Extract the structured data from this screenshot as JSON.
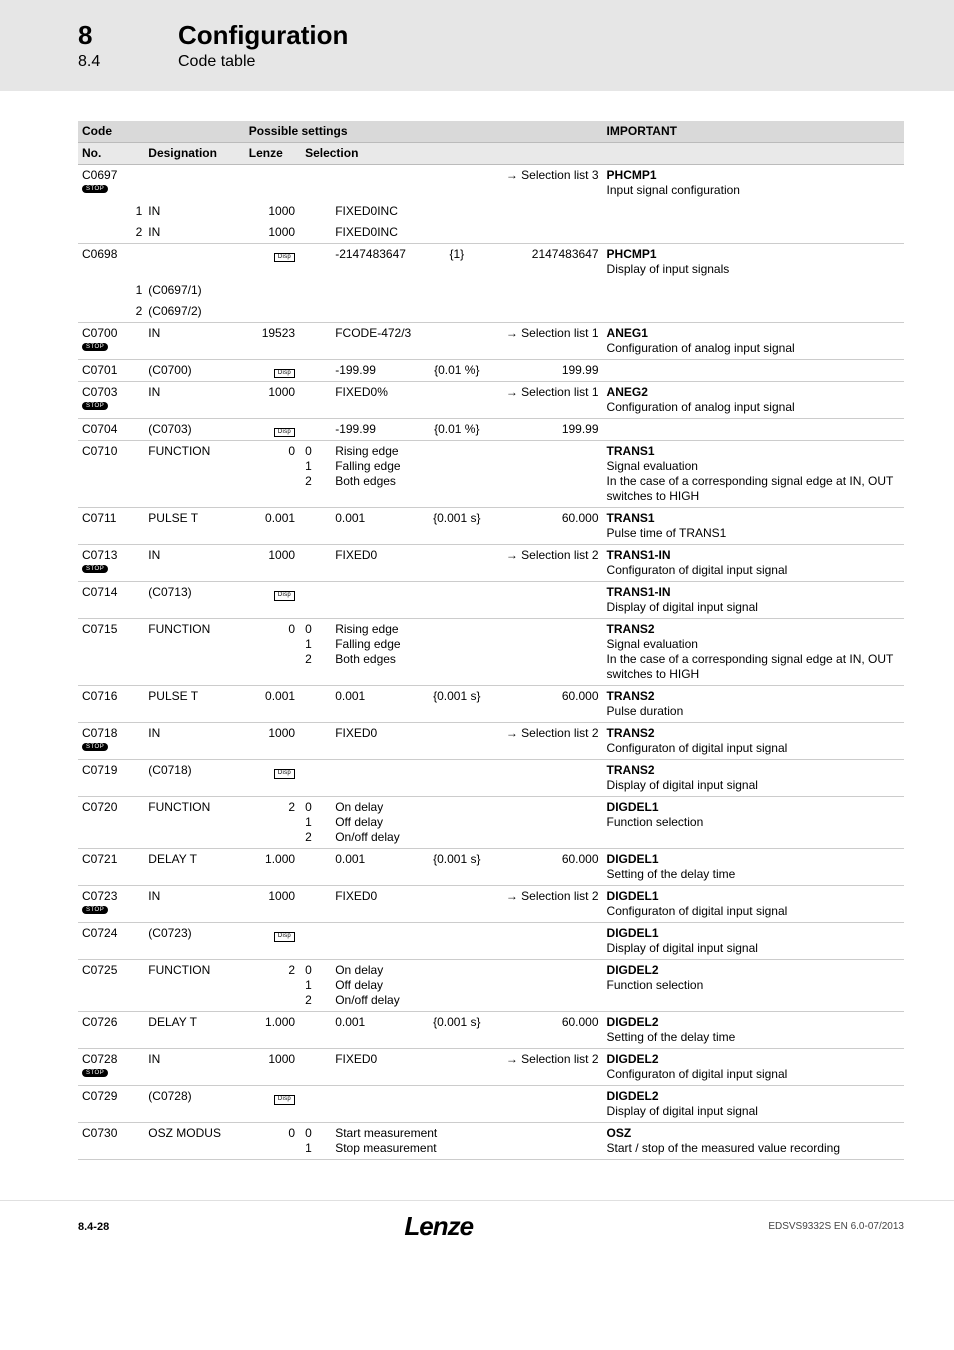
{
  "header": {
    "section_num": "8",
    "section_title": "Configuration",
    "subsection_num": "8.4",
    "subsection_title": "Code table"
  },
  "columns": {
    "code": "Code",
    "no": "No.",
    "designation": "Designation",
    "possible": "Possible settings",
    "lenze": "Lenze",
    "selection": "Selection",
    "important": "IMPORTANT"
  },
  "badges": {
    "stop": "STOP",
    "disp": "Disp"
  },
  "rows": [
    {
      "no": "C0697",
      "stop": true,
      "sub": "",
      "desig": "",
      "lenze": "",
      "sel1": "",
      "sel2": "",
      "sel3": "",
      "sel4": "→ Selection list 3",
      "imp_b": "PHCMP1",
      "imp": "Input signal configuration",
      "line": false
    },
    {
      "no": "",
      "sub": "1",
      "desig": "IN",
      "lenze": "1000",
      "sel1": "",
      "sel2": "FIXED0INC",
      "sel3": "",
      "sel4": "",
      "imp_b": "",
      "imp": "",
      "line": true,
      "noline": true
    },
    {
      "no": "",
      "sub": "2",
      "desig": "IN",
      "lenze": "1000",
      "sel1": "",
      "sel2": "FIXED0INC",
      "sel3": "",
      "sel4": "",
      "imp_b": "",
      "imp": "",
      "line": true
    },
    {
      "no": "C0698",
      "desig": "",
      "lenze_badge": true,
      "sel1": "",
      "sel2": "-2147483647",
      "sel3": "{1}",
      "sel4": "2147483647",
      "imp_b": "PHCMP1",
      "imp": "Display of input signals",
      "line": false
    },
    {
      "no": "",
      "sub": "1",
      "desig": "(C0697/1)",
      "lenze": "",
      "sel1": "",
      "sel2": "",
      "sel3": "",
      "sel4": "",
      "imp_b": "",
      "imp": "",
      "line": true,
      "noline": true
    },
    {
      "no": "",
      "sub": "2",
      "desig": "(C0697/2)",
      "lenze": "",
      "sel1": "",
      "sel2": "",
      "sel3": "",
      "sel4": "",
      "imp_b": "",
      "imp": "",
      "line": true
    },
    {
      "no": "C0700",
      "stop": true,
      "desig": "IN",
      "lenze": "19523",
      "sel1": "",
      "sel2": "FCODE-472/3",
      "sel3": "",
      "sel4": "→ Selection list 1",
      "imp_b": "ANEG1",
      "imp": "Configuration of analog input signal",
      "line": true
    },
    {
      "no": "C0701",
      "desig": "(C0700)",
      "lenze_badge": true,
      "sel1": "",
      "sel2": "-199.99",
      "sel3": "{0.01 %}",
      "sel4": "199.99",
      "imp_b": "",
      "imp": "",
      "line": true
    },
    {
      "no": "C0703",
      "stop": true,
      "desig": "IN",
      "lenze": "1000",
      "sel1": "",
      "sel2": "FIXED0%",
      "sel3": "",
      "sel4": "→ Selection list 1",
      "imp_b": "ANEG2",
      "imp": "Configuration of analog input signal",
      "line": true
    },
    {
      "no": "C0704",
      "desig": "(C0703)",
      "lenze_badge": true,
      "sel1": "",
      "sel2": "-199.99",
      "sel3": "{0.01 %}",
      "sel4": "199.99",
      "imp_b": "",
      "imp": "",
      "line": true
    },
    {
      "no": "C0710",
      "desig": "FUNCTION",
      "lenze": "0",
      "sel_multi": [
        [
          "0",
          "Rising edge"
        ],
        [
          "1",
          "Falling edge"
        ],
        [
          "2",
          "Both edges"
        ]
      ],
      "imp_b": "TRANS1",
      "imp": "Signal evaluation\nIn the case of a corresponding signal edge at IN, OUT switches to HIGH",
      "line": true
    },
    {
      "no": "C0711",
      "desig": "PULSE T",
      "lenze": "0.001",
      "sel1": "",
      "sel2": "0.001",
      "sel3": "{0.001 s}",
      "sel4": "60.000",
      "imp_b": "TRANS1",
      "imp": "Pulse time of TRANS1",
      "line": true
    },
    {
      "no": "C0713",
      "stop": true,
      "desig": "IN",
      "lenze": "1000",
      "sel1": "",
      "sel2": "FIXED0",
      "sel3": "",
      "sel4": "→ Selection list 2",
      "imp_b": "TRANS1-IN",
      "imp": "Configuraton of digital input signal",
      "line": true
    },
    {
      "no": "C0714",
      "desig": "(C0713)",
      "lenze_badge": true,
      "sel1": "",
      "sel2": "",
      "sel3": "",
      "sel4": "",
      "imp_b": "TRANS1-IN",
      "imp": "Display of digital input signal",
      "line": true
    },
    {
      "no": "C0715",
      "desig": "FUNCTION",
      "lenze": "0",
      "sel_multi": [
        [
          "0",
          "Rising edge"
        ],
        [
          "1",
          "Falling edge"
        ],
        [
          "2",
          "Both edges"
        ]
      ],
      "imp_b": "TRANS2",
      "imp": "Signal evaluation\nIn the case of a corresponding signal edge at IN, OUT switches to HIGH",
      "line": true
    },
    {
      "no": "C0716",
      "desig": "PULSE T",
      "lenze": "0.001",
      "sel1": "",
      "sel2": "0.001",
      "sel3": "{0.001 s}",
      "sel4": "60.000",
      "imp_b": "TRANS2",
      "imp": "Pulse duration",
      "line": true
    },
    {
      "no": "C0718",
      "stop": true,
      "desig": "IN",
      "lenze": "1000",
      "sel1": "",
      "sel2": "FIXED0",
      "sel3": "",
      "sel4": "→ Selection list 2",
      "imp_b": "TRANS2",
      "imp": "Configuraton of digital input signal",
      "line": true
    },
    {
      "no": "C0719",
      "desig": "(C0718)",
      "lenze_badge": true,
      "sel1": "",
      "sel2": "",
      "sel3": "",
      "sel4": "",
      "imp_b": "TRANS2",
      "imp": "Display of digital input signal",
      "line": true
    },
    {
      "no": "C0720",
      "desig": "FUNCTION",
      "lenze": "2",
      "sel_multi": [
        [
          "0",
          "On delay"
        ],
        [
          "1",
          "Off delay"
        ],
        [
          "2",
          "On/off delay"
        ]
      ],
      "imp_b": "DIGDEL1",
      "imp": "Function selection",
      "line": true
    },
    {
      "no": "C0721",
      "desig": "DELAY T",
      "lenze": "1.000",
      "sel1": "",
      "sel2": "0.001",
      "sel3": "{0.001 s}",
      "sel4": "60.000",
      "imp_b": "DIGDEL1",
      "imp": "Setting of the delay time",
      "line": true
    },
    {
      "no": "C0723",
      "stop": true,
      "desig": "IN",
      "lenze": "1000",
      "sel1": "",
      "sel2": "FIXED0",
      "sel3": "",
      "sel4": "→ Selection list 2",
      "imp_b": "DIGDEL1",
      "imp": "Configuraton of digital input signal",
      "line": true
    },
    {
      "no": "C0724",
      "desig": "(C0723)",
      "lenze_badge": true,
      "sel1": "",
      "sel2": "",
      "sel3": "",
      "sel4": "",
      "imp_b": "DIGDEL1",
      "imp": "Display of digital input signal",
      "line": true
    },
    {
      "no": "C0725",
      "desig": "FUNCTION",
      "lenze": "2",
      "sel_multi": [
        [
          "0",
          "On delay"
        ],
        [
          "1",
          "Off delay"
        ],
        [
          "2",
          "On/off delay"
        ]
      ],
      "imp_b": "DIGDEL2",
      "imp": "Function selection",
      "line": true
    },
    {
      "no": "C0726",
      "desig": "DELAY T",
      "lenze": "1.000",
      "sel1": "",
      "sel2": "0.001",
      "sel3": "{0.001 s}",
      "sel4": "60.000",
      "imp_b": "DIGDEL2",
      "imp": "Setting of the delay time",
      "line": true
    },
    {
      "no": "C0728",
      "stop": true,
      "desig": "IN",
      "lenze": "1000",
      "sel1": "",
      "sel2": "FIXED0",
      "sel3": "",
      "sel4": "→ Selection list 2",
      "imp_b": "DIGDEL2",
      "imp": "Configuraton of digital input signal",
      "line": true
    },
    {
      "no": "C0729",
      "desig": "(C0728)",
      "lenze_badge": true,
      "sel1": "",
      "sel2": "",
      "sel3": "",
      "sel4": "",
      "imp_b": "DIGDEL2",
      "imp": "Display of digital input signal",
      "line": true
    },
    {
      "no": "C0730",
      "desig": "OSZ MODUS",
      "lenze": "0",
      "sel_multi": [
        [
          "0",
          "Start measurement"
        ],
        [
          "1",
          "Stop measurement"
        ]
      ],
      "imp_b": "OSZ",
      "imp": "Start / stop of the measured value recording",
      "line": true
    }
  ],
  "footer": {
    "page": "8.4-28",
    "brand": "Lenze",
    "docid": "EDSVS9332S EN 6.0-07/2013"
  }
}
